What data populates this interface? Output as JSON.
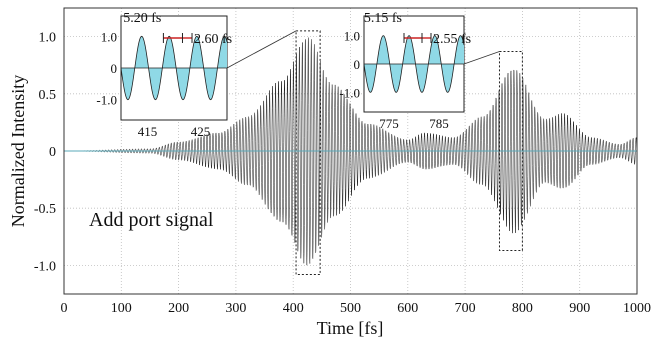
{
  "chart_data": {
    "type": "line",
    "title": "",
    "xlabel": "Time [fs]",
    "ylabel": "Normalized Intensity",
    "xlim": [
      0,
      1000
    ],
    "ylim": [
      -1.25,
      1.25
    ],
    "x_ticks": [
      "0",
      "100",
      "200",
      "300",
      "400",
      "500",
      "600",
      "700",
      "800",
      "900",
      "1000"
    ],
    "y_ticks": [
      "1.0",
      "0.5",
      "0",
      "-0.5",
      "-1.0"
    ],
    "grid": "dotted",
    "annotation": "Add port signal",
    "line_color": "#1a1a1a",
    "fill_color": "#8fd9e6",
    "carrier_period_fs": 5.2,
    "envelope": {
      "description_points": {
        "x": [
          0,
          150,
          200,
          270,
          320,
          380,
          425,
          470,
          530,
          600,
          630,
          680,
          730,
          785,
          840,
          870,
          920,
          970,
          1000
        ],
        "y": [
          0,
          0.02,
          0.08,
          0.16,
          0.3,
          0.62,
          1.0,
          0.58,
          0.24,
          0.1,
          0.16,
          0.12,
          0.3,
          0.72,
          0.28,
          0.33,
          0.12,
          0.06,
          0.12
        ]
      }
    },
    "highlight_boxes": [
      {
        "x_range": [
          405,
          447
        ],
        "y_range": [
          -1.08,
          1.05
        ]
      },
      {
        "x_range": [
          760,
          800
        ],
        "y_range": [
          -0.87,
          0.87
        ]
      }
    ],
    "insets": [
      {
        "x_range": [
          410,
          430
        ],
        "x_ticks": [
          "415",
          "425"
        ],
        "y_ticks": [
          "1.0",
          "0",
          "-1.0"
        ],
        "period_label": "5.20 fs",
        "half_period_label": "2.60 fs",
        "period_fs": 5.2
      },
      {
        "x_range": [
          770,
          790
        ],
        "x_ticks": [
          "775",
          "785"
        ],
        "y_ticks": [
          "1.0",
          "0",
          "-1.0"
        ],
        "period_label": "5.15 fs",
        "half_period_label": "2.55 fs",
        "period_fs": 5.15
      }
    ]
  }
}
